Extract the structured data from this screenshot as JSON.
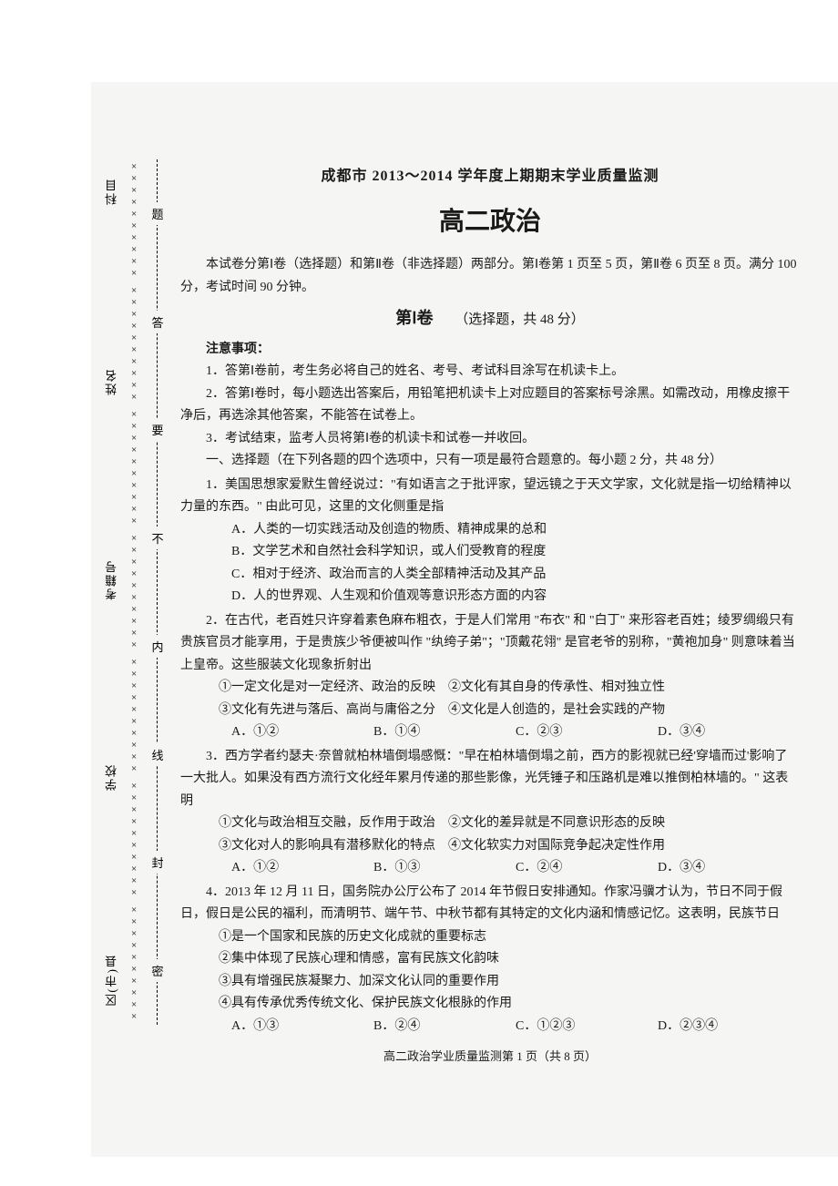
{
  "sidebar": {
    "fields": [
      "科目",
      "姓名",
      "考籍号",
      "学校",
      "区(市)县"
    ],
    "x_pattern": "××××××××××",
    "mid_chars": [
      "题",
      "答",
      "要",
      "不",
      "内",
      "线",
      "封",
      "密"
    ]
  },
  "header": {
    "main_title": "成都市 2013～2014 学年度上期期末学业质量监测",
    "sub_title": "高二政治",
    "intro": "本试卷分第Ⅰ卷（选择题）和第Ⅱ卷（非选择题）两部分。第Ⅰ卷第 1 页至 5 页，第Ⅱ卷 6 页至 8 页。满分 100 分，考试时间 90 分钟。",
    "juan_label": "第Ⅰ卷",
    "juan_note": "（选择题，共 48 分）"
  },
  "notice": {
    "header": "注意事项：",
    "items": [
      "1．答第Ⅰ卷前，考生务必将自己的姓名、考号、考试科目涂写在机读卡上。",
      "2．答第Ⅰ卷时，每小题选出答案后，用铅笔把机读卡上对应题目的答案标号涂黑。如需改动，用橡皮擦干净后，再选涂其他答案，不能答在试卷上。",
      "3．考试结束，监考人员将第Ⅰ卷的机读卡和试卷一并收回。"
    ]
  },
  "section1": {
    "title": "一、选择题（在下列各题的四个选项中，只有一项是最符合题意的。每小题 2 分，共 48 分）"
  },
  "q1": {
    "stem": "1．美国思想家爱默生曾经说过：\"有如语言之于批评家，望远镜之于天文学家，文化就是指一切给精神以力量的东西。\" 由此可见，这里的文化侧重是指",
    "opts": [
      "A．人类的一切实践活动及创造的物质、精神成果的总和",
      "B．文学艺术和自然社会科学知识，或人们受教育的程度",
      "C．相对于经济、政治而言的人类全部精神活动及其产品",
      "D．人的世界观、人生观和价值观等意识形态方面的内容"
    ]
  },
  "q2": {
    "stem": "2．在古代，老百姓只许穿着素色麻布粗衣，于是人们常用 \"布衣\" 和 \"白丁\" 来形容老百姓；绫罗绸缎只有贵族官员才能享用，于是贵族少爷便被叫作 \"纨绔子弟\"；\"顶戴花翎\" 是官老爷的别称，\"黄袍加身\" 则意味着当上皇帝。这些服装文化现象折射出",
    "stmts": [
      "①一定文化是对一定经济、政治的反映　②文化有其自身的传承性、相对独立性",
      "③文化有先进与落后、高尚与庸俗之分　④文化是人创造的，是社会实践的产物"
    ],
    "choices": [
      "A．①②",
      "B．①④",
      "C．②③",
      "D．③④"
    ]
  },
  "q3": {
    "stem": "3．西方学者约瑟夫·奈曾就柏林墙倒塌感慨：\"早在柏林墙倒塌之前，西方的影视就已经'穿墙而过'影响了一大批人。如果没有西方流行文化经年累月传递的那些影像，光凭锤子和压路机是难以推倒柏林墙的。\" 这表明",
    "stmts": [
      "①文化与政治相互交融，反作用于政治　②文化的差异就是不同意识形态的反映",
      "③文化对人的影响具有潜移默化的特点　④文化软实力对国际竞争起决定性作用"
    ],
    "choices": [
      "A．①②",
      "B．①③",
      "C．②④",
      "D．③④"
    ]
  },
  "q4": {
    "stem": "4．2013 年 12 月 11 日，国务院办公厅公布了 2014 年节假日安排通知。作家冯骥才认为，节日不同于假日，假日是公民的福利，而清明节、端午节、中秋节都有其特定的文化内涵和情感记忆。这表明，民族节日",
    "stmts": [
      "①是一个国家和民族的历史文化成就的重要标志",
      "②集中体现了民族心理和情感，富有民族文化韵味",
      "③具有增强民族凝聚力、加深文化认同的重要作用",
      "④具有传承优秀传统文化、保护民族文化根脉的作用"
    ],
    "choices": [
      "A．①③",
      "B．②④",
      "C．①②③",
      "D．②③④"
    ]
  },
  "footer": "高二政治学业质量监测第 1 页（共 8 页）"
}
